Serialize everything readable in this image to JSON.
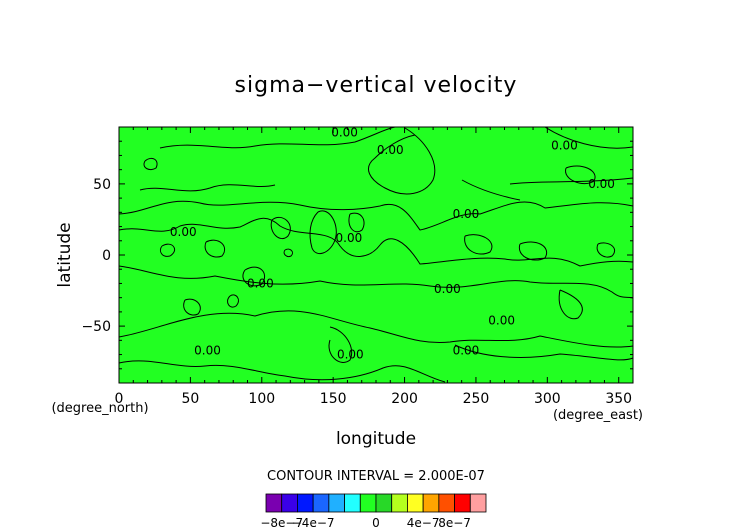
{
  "chart_data": {
    "type": "heatmap",
    "title": "sigma−vertical velocity",
    "xlabel": "longitude",
    "ylabel": "latitude",
    "x_unit_label": "(degree_east)",
    "y_unit_label": "(degree_north)",
    "xlim": [
      0,
      360
    ],
    "ylim": [
      -90,
      90
    ],
    "x_ticks": [
      0,
      50,
      100,
      150,
      200,
      250,
      300,
      350
    ],
    "y_ticks": [
      -50,
      0,
      50
    ],
    "x_tick_labels": [
      "0",
      "50",
      "100",
      "150",
      "200",
      "250",
      "300",
      "350"
    ],
    "y_tick_labels": [
      "−50",
      "0",
      "50"
    ],
    "contour_interval_text": "CONTOUR INTERVAL = 2.000E-07",
    "field_fill_color": "#22ff22",
    "contour_line_color": "#000000",
    "contour_labels": [
      {
        "text": "0.00",
        "lon": 158,
        "lat": 86
      },
      {
        "text": "0.00",
        "lon": 190,
        "lat": 74
      },
      {
        "text": "0.00",
        "lon": 312,
        "lat": 77
      },
      {
        "text": "0.00",
        "lon": 338,
        "lat": 50
      },
      {
        "text": "0.00",
        "lon": 243,
        "lat": 29
      },
      {
        "text": "0.00",
        "lon": 45,
        "lat": 16
      },
      {
        "text": "0.00",
        "lon": 161,
        "lat": 12
      },
      {
        "text": "0.00",
        "lon": 99,
        "lat": -20
      },
      {
        "text": "0.00",
        "lon": 230,
        "lat": -24
      },
      {
        "text": "0.00",
        "lon": 268,
        "lat": -46
      },
      {
        "text": "0.00",
        "lon": 62,
        "lat": -67
      },
      {
        "text": "0.00",
        "lon": 162,
        "lat": -70
      },
      {
        "text": "0.00",
        "lon": 243,
        "lat": -67
      }
    ],
    "colorbar": {
      "colors": [
        "#7a00b0",
        "#3a00e8",
        "#0018ff",
        "#1a66ff",
        "#20b0ff",
        "#22ffff",
        "#22ff22",
        "#28d828",
        "#b4ff1e",
        "#ffff22",
        "#ffa500",
        "#ff5000",
        "#ff0000",
        "#ff9fa0"
      ],
      "tick_labels": [
        "−8e−7",
        "−4e−7",
        "0",
        "4e−7",
        "8e−7"
      ],
      "tick_values": [
        -8e-07,
        -4e-07,
        0,
        4e-07,
        8e-07
      ]
    }
  }
}
